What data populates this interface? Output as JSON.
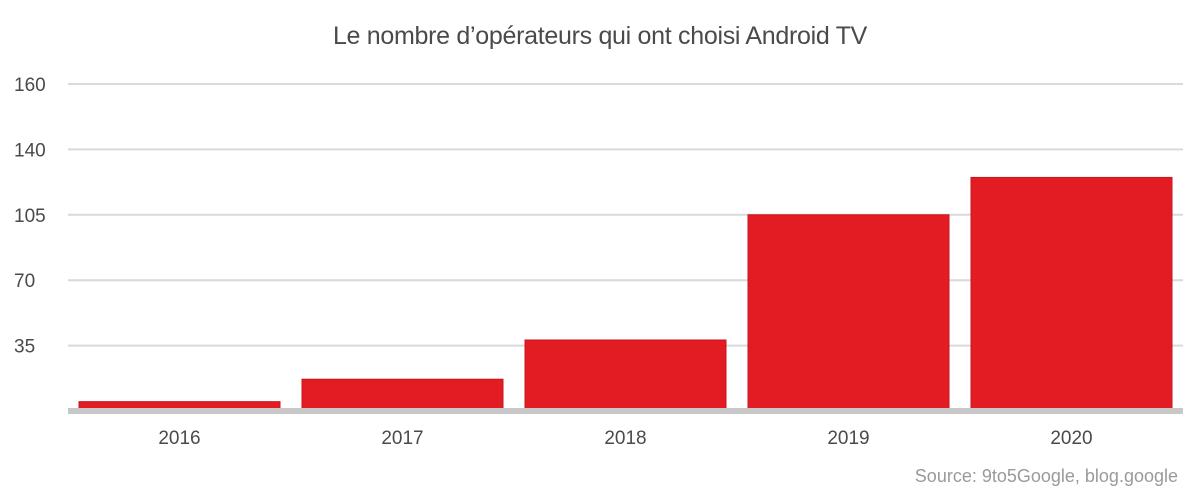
{
  "chart_data": {
    "type": "bar",
    "title": "Le nombre d’opérateurs qui ont choisi Android TV",
    "categories": [
      "2016",
      "2017",
      "2018",
      "2019",
      "2020"
    ],
    "values": [
      5,
      17,
      38,
      105,
      125
    ],
    "yticks": [
      35,
      70,
      105,
      140,
      160
    ],
    "grid": true,
    "colors": {
      "bar": "#e31c24",
      "bar_outline": "#c8151c",
      "grid": "#d9d9d9",
      "baseline": "#c8c8c8",
      "text": "#4a4a4a"
    }
  },
  "source": "Source: 9to5Google, blog.google"
}
